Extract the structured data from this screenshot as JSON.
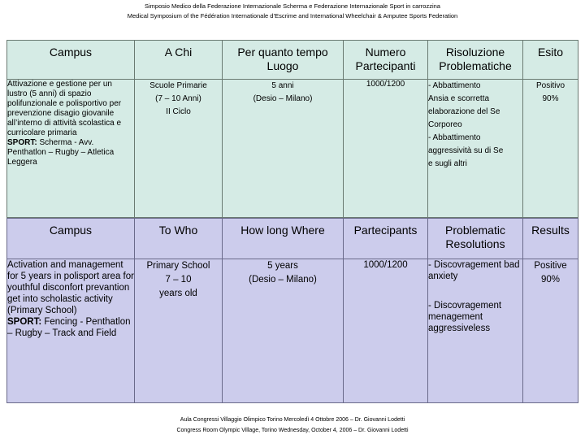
{
  "header": {
    "line1": "Simposio Medico della Federazione Internazionale Scherma e Federazione Internazionale Sport in carrozzina",
    "line2": "Medical Symposium of the Fédération Internationale d’Escrime and International Wheelchair & Amputee Sports Federation"
  },
  "italian_table": {
    "headers": [
      "Campus",
      "A Chi",
      "Per quanto tempo Luogo",
      "Numero Partecipanti",
      "Risoluzione Problematiche",
      "Esito"
    ],
    "campus_text": "Attivazione e gestione per un lustro (5 anni) di spazio polifunzionale e polisportivo per prevenzione disagio giovanile all’interno di attività scolastica e curricolare primaria",
    "sport_label": "SPORT:",
    "sport_text": " Scherma - Avv. Penthatlon – Rugby – Atletica Leggera",
    "who": [
      "Scuole Primarie",
      "(7 – 10 Anni)",
      "II Ciclo"
    ],
    "time": [
      "5 anni",
      "(Desio – Milano)"
    ],
    "participants": "1000/1200",
    "problems": [
      "- Abbattimento",
      "Ansia e scorretta",
      "elaborazione del Se",
      "Corporeo",
      "- Abbattimento",
      "aggressività su di Se",
      "e sugli altri"
    ],
    "outcome": [
      "Positivo",
      "90%"
    ]
  },
  "english_table": {
    "headers": [
      "Campus",
      "To Who",
      "How long Where",
      "Partecipants",
      "Problematic Resolutions",
      "Results"
    ],
    "campus_text": "Activation and management for 5 years in polisport area for youthful disconfort prevantion get into scholastic activity (Primary School)",
    "sport_label": "SPORT:",
    "sport_text": " Fencing - Penthatlon – Rugby – Track and Field",
    "who": [
      "Primary School",
      "7 – 10",
      "years old"
    ],
    "time": [
      "5 years",
      "(Desio – Milano)"
    ],
    "participants": "1000/1200",
    "problems_a": "- Discovragement bad anxiety",
    "problems_b": "- Discovragement menagement aggressiveless",
    "outcome": [
      "Positive",
      "90%"
    ]
  },
  "footer": {
    "line1": "Aula Congressi Villaggio Olimpico Torino Mercoledì 4 Ottobre 2006 – Dr. Giovanni Lodetti",
    "line2": "Congress Room Olympic Village, Torino Wednesday, October 4, 2006 – Dr. Giovanni Lodetti"
  }
}
